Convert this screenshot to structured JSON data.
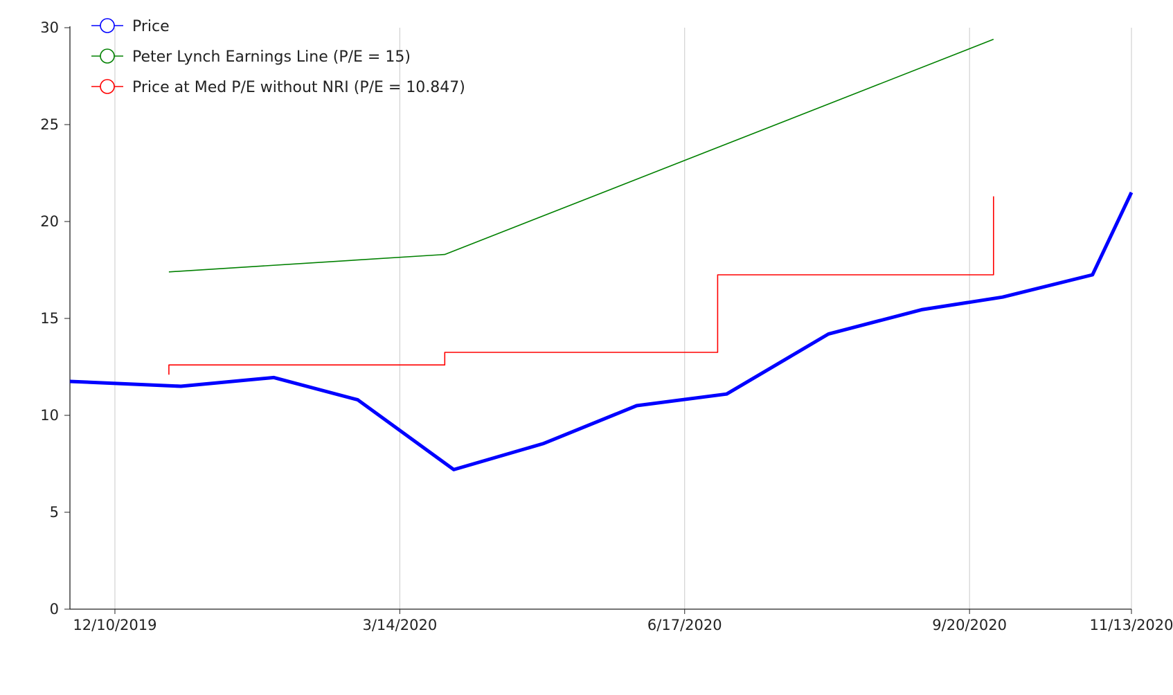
{
  "chart_data": {
    "type": "line",
    "title": "",
    "xlabel": "",
    "ylabel": "",
    "xlim": [
      "2019-11-25",
      "2020-11-13"
    ],
    "ylim": [
      0,
      30
    ],
    "x_ticks": [
      "2019-12-10",
      "2020-03-14",
      "2020-06-17",
      "2020-09-20",
      "2020-11-13"
    ],
    "x_tick_labels": [
      "12/10/2019",
      "3/14/2020",
      "6/17/2020",
      "9/20/2020",
      "11/13/2020"
    ],
    "y_ticks": [
      0,
      5,
      10,
      15,
      20,
      25,
      30
    ],
    "y_tick_labels": [
      "0",
      "5",
      "10",
      "15",
      "20",
      "25",
      "30"
    ],
    "grid": {
      "vertical": true,
      "horizontal": false,
      "color": "#c8c8c8"
    },
    "legend": {
      "placement": "top-left"
    },
    "series": [
      {
        "name": "Price",
        "color": "#0000ff",
        "line_width": "thick",
        "step": false,
        "points": [
          {
            "x": "2019-11-25",
            "y": 11.75
          },
          {
            "x": "2020-01-01",
            "y": 11.5
          },
          {
            "x": "2020-02-01",
            "y": 11.95
          },
          {
            "x": "2020-02-29",
            "y": 10.8
          },
          {
            "x": "2020-04-01",
            "y": 7.2
          },
          {
            "x": "2020-05-01",
            "y": 8.55
          },
          {
            "x": "2020-06-01",
            "y": 10.5
          },
          {
            "x": "2020-07-01",
            "y": 11.1
          },
          {
            "x": "2020-08-04",
            "y": 14.2
          },
          {
            "x": "2020-09-04",
            "y": 15.45
          },
          {
            "x": "2020-10-01",
            "y": 16.1
          },
          {
            "x": "2020-10-31",
            "y": 17.25
          },
          {
            "x": "2020-11-13",
            "y": 21.5
          }
        ]
      },
      {
        "name": "Peter Lynch Earnings Line (P/E = 15)",
        "color": "#008000",
        "line_width": "thin",
        "step": false,
        "points": [
          {
            "x": "2019-12-28",
            "y": 17.4
          },
          {
            "x": "2020-03-29",
            "y": 18.3
          },
          {
            "x": "2020-09-28",
            "y": 29.4
          }
        ]
      },
      {
        "name": "Price at Med P/E without NRI (P/E = 10.847)",
        "color": "#ff0000",
        "line_width": "thin",
        "step": true,
        "points": [
          {
            "x": "2019-12-28",
            "y": 12.1
          },
          {
            "x": "2019-12-28",
            "y": 12.6
          },
          {
            "x": "2020-03-29",
            "y": 12.6
          },
          {
            "x": "2020-03-29",
            "y": 13.25
          },
          {
            "x": "2020-06-28",
            "y": 13.25
          },
          {
            "x": "2020-06-28",
            "y": 17.25
          },
          {
            "x": "2020-09-28",
            "y": 17.25
          },
          {
            "x": "2020-09-28",
            "y": 21.3
          }
        ]
      }
    ]
  }
}
